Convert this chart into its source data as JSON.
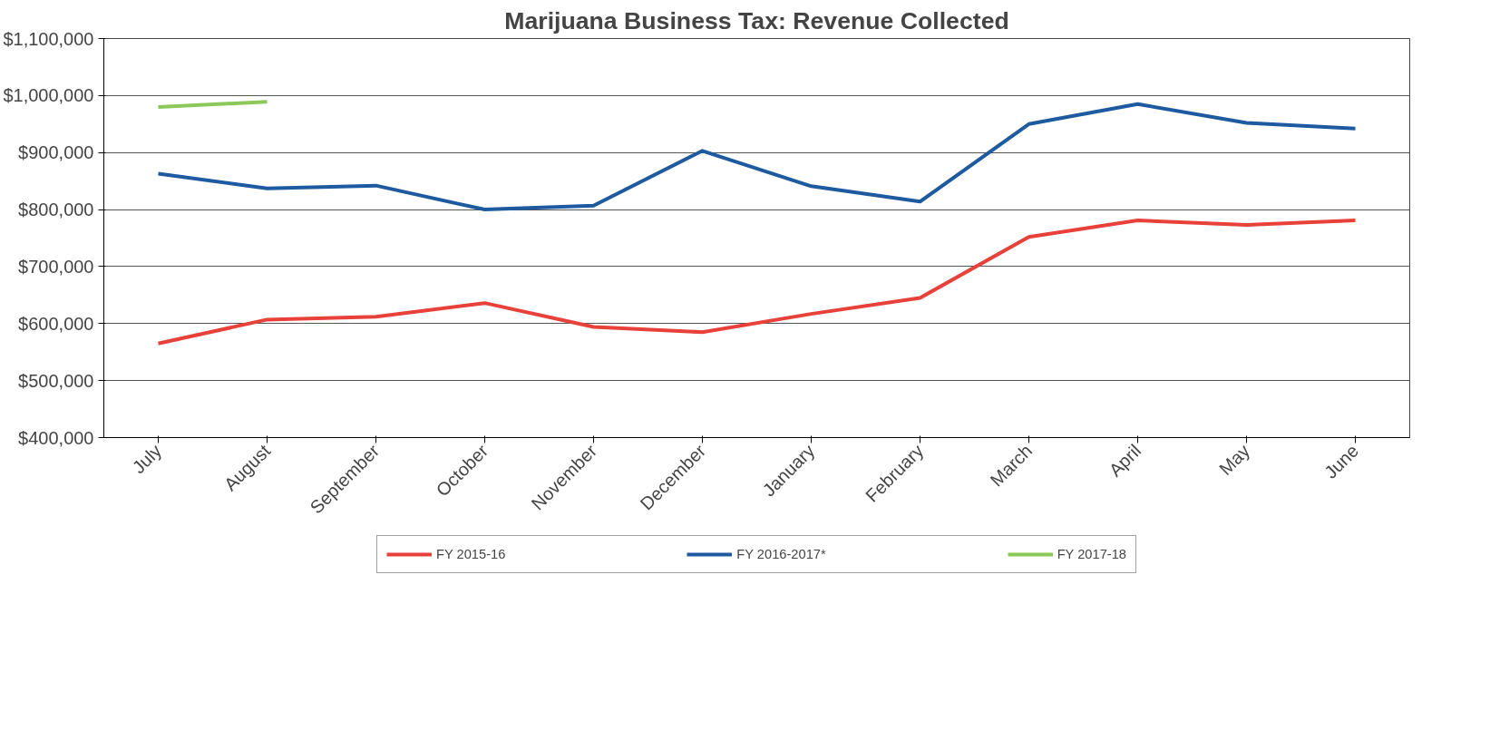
{
  "chart_data": {
    "type": "line",
    "title": "Marijuana Business Tax: Revenue Collected",
    "categories": [
      "July",
      "August",
      "September",
      "October",
      "November",
      "December",
      "January",
      "February",
      "March",
      "April",
      "May",
      "June"
    ],
    "series": [
      {
        "name": "FY 2015-16",
        "color": "#e8413a",
        "values": [
          565000,
          607000,
          612000,
          636000,
          594000,
          585000,
          617000,
          645000,
          752000,
          781000,
          773000,
          781000
        ]
      },
      {
        "name": "FY 2016-2017*",
        "color": "#1d5aa0",
        "values": [
          863000,
          837000,
          842000,
          800000,
          807000,
          903000,
          841000,
          814000,
          950000,
          985000,
          952000,
          942000
        ]
      },
      {
        "name": "FY 2017-18",
        "color": "#8cc95a",
        "values": [
          980000,
          989000,
          null,
          null,
          null,
          null,
          null,
          null,
          null,
          null,
          null,
          null
        ]
      }
    ],
    "ylim": [
      400000,
      1100000
    ],
    "yticks": [
      {
        "value": 400000,
        "label": "$400,000"
      },
      {
        "value": 500000,
        "label": "$500,000"
      },
      {
        "value": 600000,
        "label": "$600,000"
      },
      {
        "value": 700000,
        "label": "$700,000"
      },
      {
        "value": 800000,
        "label": "$800,000"
      },
      {
        "value": 900000,
        "label": "$900,000"
      },
      {
        "value": 1000000,
        "label": "$1,000,000"
      },
      {
        "value": 1100000,
        "label": "$1,100,000"
      }
    ],
    "grid": "y",
    "legend": "bottom",
    "marker": "none",
    "line_style": "solid"
  }
}
